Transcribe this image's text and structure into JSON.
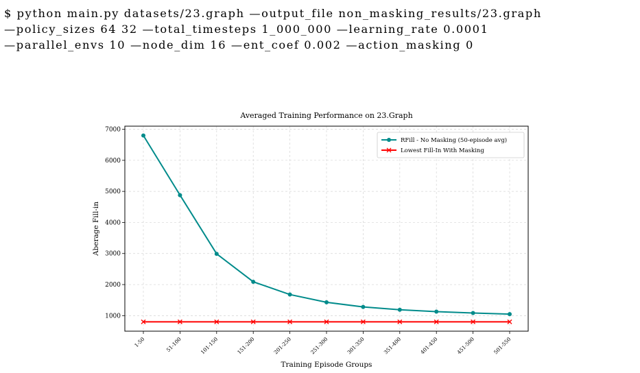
{
  "command": {
    "lines": [
      "$ python main.py datasets/23.graph —output_file non_masking_results/23.graph",
      "—policy_sizes 64 32 —total_timesteps 1_000_000 —learning_rate 0.0001",
      "—parallel_envs 10 —node_dim 16 —ent_coef 0.002 —action_masking 0"
    ]
  },
  "chart_data": {
    "type": "line",
    "title": "Averaged Training Performance on 23.Graph",
    "xlabel": "Training Episode Groups",
    "ylabel": "Aberage Fill-in",
    "categories": [
      "1-50",
      "51-100",
      "101-150",
      "151-200",
      "201-250",
      "251-300",
      "301-350",
      "351-400",
      "401-450",
      "451-500",
      "501-550"
    ],
    "ylim": [
      500,
      7100
    ],
    "yticks": [
      1000,
      2000,
      3000,
      4000,
      5000,
      6000,
      7000
    ],
    "grid": true,
    "legend_position": "top-right",
    "series": [
      {
        "name": "RFill - No Masking (50-episode avg)",
        "color": "#008b8b",
        "marker": "circle",
        "values": [
          6800,
          4880,
          2990,
          2090,
          1680,
          1430,
          1280,
          1190,
          1130,
          1085,
          1050
        ]
      },
      {
        "name": "Lowest Fill-In With Masking",
        "color": "#ff0000",
        "marker": "x",
        "values": [
          800,
          800,
          800,
          800,
          800,
          800,
          800,
          800,
          800,
          800,
          800
        ]
      }
    ]
  }
}
